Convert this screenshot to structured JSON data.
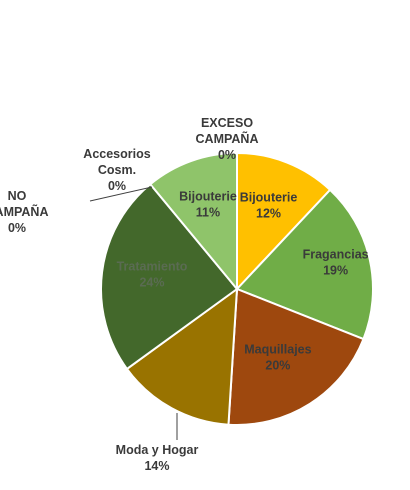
{
  "chart_data": {
    "type": "pie",
    "title": "",
    "legend": "none",
    "slices": [
      {
        "name": "Bijouterie",
        "value": 12,
        "label": "12%",
        "color": "#FFC000",
        "label_color": "#3a3a3a"
      },
      {
        "name": "Fragancias",
        "value": 19,
        "label": "19%",
        "color": "#70AD47",
        "label_color": "#3a3a3a"
      },
      {
        "name": "Maquillajes",
        "value": 20,
        "label": "20%",
        "color": "#9E480E",
        "label_color": "#3a3a3a"
      },
      {
        "name": "Moda y Hogar",
        "value": 14,
        "label": "14%",
        "color": "#997300",
        "label_color": "#3a3a3a"
      },
      {
        "name": "Tratamiento",
        "value": 24,
        "label": "24%",
        "color": "#43682B",
        "label_color": "#5a6b52"
      },
      {
        "name": "Bijouterie",
        "value": 11,
        "label": "11%",
        "color": "#8FC46A",
        "label_color": "#3a3a3a"
      },
      {
        "name": "Accesorios Cosm.",
        "value": 0,
        "label": "0%",
        "color": "#A5A5A5",
        "label_color": "#3a3a3a"
      },
      {
        "name": "NO CAMPAÑA",
        "value": 0,
        "label": "0%",
        "color": "#5B9BD5",
        "label_color": "#3a3a3a"
      },
      {
        "name": "EXCESO CAMPAÑA",
        "value": 0,
        "label": "0%",
        "color": "#ED7D31",
        "label_color": "#3a3a3a"
      }
    ]
  }
}
